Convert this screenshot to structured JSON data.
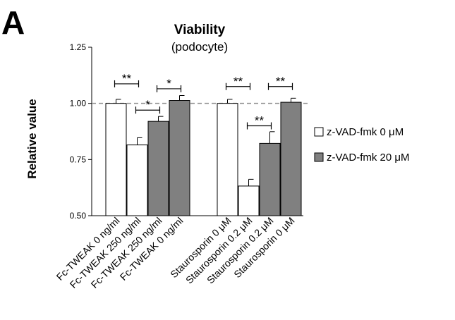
{
  "chart_data": {
    "type": "bar",
    "panel_label": "A",
    "title": "Viability",
    "subtitle": "(podocyte)",
    "ylabel": "Relative value",
    "xlabel": "",
    "ylim": [
      0.5,
      1.25
    ],
    "yticks": [
      "0.50",
      "0.75",
      "1.00",
      "1.25"
    ],
    "reference_line": 1.0,
    "groups": [
      {
        "categories": [
          "Fc-TWEAK 0 ng/ml",
          "Fc-TWEAK 250 ng/ml",
          "Fc-TWEAK 250 ng/ml",
          "Fc-TWEAK 0 ng/ml"
        ],
        "series_index": [
          0,
          0,
          1,
          1
        ],
        "values": [
          1.0,
          0.815,
          0.92,
          1.013
        ],
        "errors": [
          0.018,
          0.032,
          0.022,
          0.022
        ]
      },
      {
        "categories": [
          "Staurosporin 0 μM",
          "Staurosporin 0.2 μM",
          "Staurosporin 0.2 μM",
          "Staurosporin 0 μM"
        ],
        "series_index": [
          0,
          0,
          1,
          1
        ],
        "values": [
          1.0,
          0.632,
          0.822,
          1.005
        ],
        "errors": [
          0.018,
          0.03,
          0.052,
          0.018
        ]
      }
    ],
    "series": [
      {
        "name": "z-VAD-fmk 0 μM",
        "color": "#ffffff"
      },
      {
        "name": "z-VAD-fmk 20 μM",
        "color": "#808080"
      }
    ],
    "significance": [
      {
        "group": 0,
        "from": 0,
        "to": 1,
        "label": "**",
        "y": 1.087
      },
      {
        "group": 0,
        "from": 1,
        "to": 2,
        "label": "*",
        "y": 0.97
      },
      {
        "group": 0,
        "from": 2,
        "to": 3,
        "label": "*",
        "y": 1.065
      },
      {
        "group": 1,
        "from": 0,
        "to": 1,
        "label": "**",
        "y": 1.075
      },
      {
        "group": 1,
        "from": 1,
        "to": 2,
        "label": "**",
        "y": 0.9
      },
      {
        "group": 1,
        "from": 2,
        "to": 3,
        "label": "**",
        "y": 1.075
      }
    ],
    "legend_position": "right",
    "grid": false
  }
}
